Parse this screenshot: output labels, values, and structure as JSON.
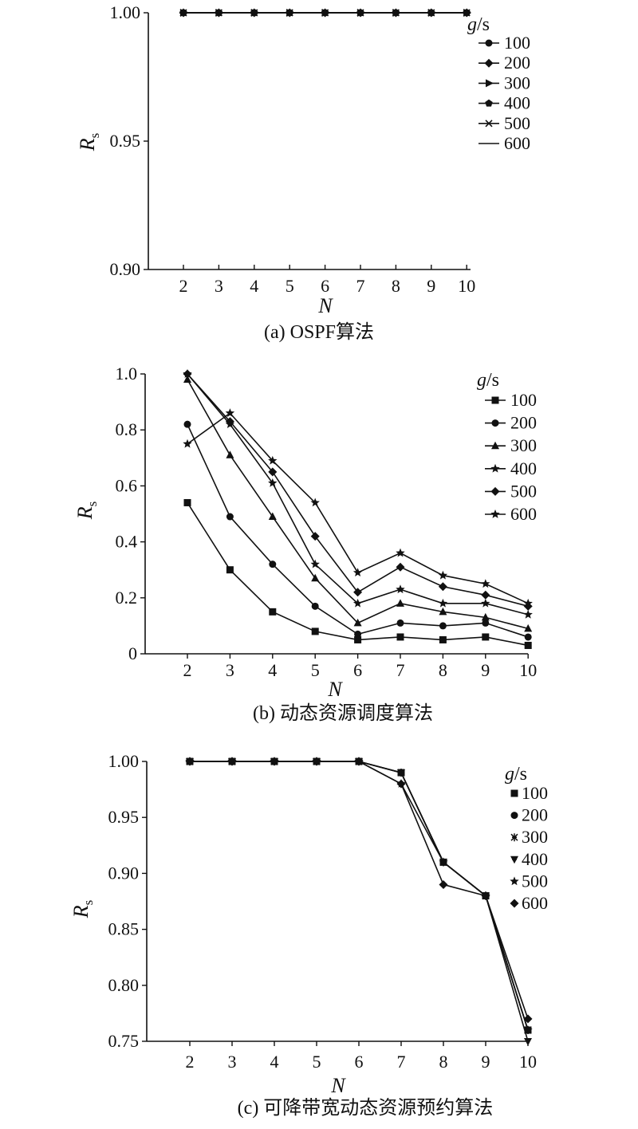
{
  "figure": {
    "panels": [
      {
        "caption": "(a) OSPF算法"
      },
      {
        "caption": "(b) 动态资源调度算法"
      },
      {
        "caption": "(c) 可降带宽动态资源预约算法"
      }
    ]
  },
  "chart_data": [
    {
      "type": "line",
      "title": "",
      "caption": "(a) OSPF算法",
      "xlabel": "N",
      "ylabel": "Rs",
      "x": [
        2,
        3,
        4,
        5,
        6,
        7,
        8,
        9,
        10
      ],
      "xticks": [
        "2",
        "3",
        "4",
        "5",
        "6",
        "7",
        "8",
        "9",
        "10"
      ],
      "ylim": [
        0.9,
        1.0
      ],
      "yticks": [
        "0.90",
        "0.95",
        "1.00"
      ],
      "legend_title": "g/s",
      "legend_position": "right",
      "grid": false,
      "series": [
        {
          "name": "100",
          "marker": "circle",
          "values": [
            1,
            1,
            1,
            1,
            1,
            1,
            1,
            1,
            1
          ]
        },
        {
          "name": "200",
          "marker": "diamond",
          "values": [
            1,
            1,
            1,
            1,
            1,
            1,
            1,
            1,
            1
          ]
        },
        {
          "name": "300",
          "marker": "triangle-right",
          "values": [
            1,
            1,
            1,
            1,
            1,
            1,
            1,
            1,
            1
          ]
        },
        {
          "name": "400",
          "marker": "pentagon",
          "values": [
            1,
            1,
            1,
            1,
            1,
            1,
            1,
            1,
            1
          ]
        },
        {
          "name": "500",
          "marker": "x",
          "values": [
            1,
            1,
            1,
            1,
            1,
            1,
            1,
            1,
            1
          ]
        },
        {
          "name": "600",
          "marker": "none",
          "values": [
            1,
            1,
            1,
            1,
            1,
            1,
            1,
            1,
            1
          ]
        }
      ]
    },
    {
      "type": "line",
      "title": "",
      "caption": "(b) 动态资源调度算法",
      "xlabel": "N",
      "ylabel": "Rs",
      "x": [
        2,
        3,
        4,
        5,
        6,
        7,
        8,
        9,
        10
      ],
      "xticks": [
        "2",
        "3",
        "4",
        "5",
        "6",
        "7",
        "8",
        "9",
        "10"
      ],
      "ylim": [
        0,
        1.0
      ],
      "yticks": [
        "0",
        "0.2",
        "0.4",
        "0.6",
        "0.8",
        "1.0"
      ],
      "legend_title": "g/s",
      "legend_position": "right",
      "grid": false,
      "series": [
        {
          "name": "100",
          "marker": "square",
          "values": [
            0.54,
            0.3,
            0.15,
            0.08,
            0.05,
            0.06,
            0.05,
            0.06,
            0.03
          ]
        },
        {
          "name": "200",
          "marker": "circle",
          "values": [
            0.82,
            0.49,
            0.32,
            0.17,
            0.07,
            0.11,
            0.1,
            0.11,
            0.06
          ]
        },
        {
          "name": "300",
          "marker": "triangle",
          "values": [
            0.98,
            0.71,
            0.49,
            0.27,
            0.11,
            0.18,
            0.15,
            0.13,
            0.09
          ]
        },
        {
          "name": "400",
          "marker": "star",
          "values": [
            1.0,
            0.82,
            0.61,
            0.32,
            0.18,
            0.23,
            0.18,
            0.18,
            0.14
          ]
        },
        {
          "name": "500",
          "marker": "diamond",
          "values": [
            1.0,
            0.83,
            0.65,
            0.42,
            0.22,
            0.31,
            0.24,
            0.21,
            0.17
          ]
        },
        {
          "name": "600",
          "marker": "star",
          "values": [
            0.75,
            0.86,
            0.69,
            0.54,
            0.29,
            0.36,
            0.28,
            0.25,
            0.18
          ]
        }
      ]
    },
    {
      "type": "line",
      "title": "",
      "caption": "(c) 可降带宽动态资源预约算法",
      "xlabel": "N",
      "ylabel": "Rs",
      "x": [
        2,
        3,
        4,
        5,
        6,
        7,
        8,
        9,
        10
      ],
      "xticks": [
        "2",
        "3",
        "4",
        "5",
        "6",
        "7",
        "8",
        "9",
        "10"
      ],
      "ylim": [
        0.75,
        1.0
      ],
      "yticks": [
        "0.75",
        "0.80",
        "0.85",
        "0.90",
        "0.95",
        "1.00"
      ],
      "legend_title": "g/s",
      "legend_position": "right",
      "grid": false,
      "series": [
        {
          "name": "100",
          "marker": "square",
          "values": [
            1.0,
            1.0,
            1.0,
            1.0,
            1.0,
            0.99,
            0.91,
            0.88,
            0.76
          ]
        },
        {
          "name": "200",
          "marker": "circle",
          "values": [
            1.0,
            1.0,
            1.0,
            1.0,
            1.0,
            0.99,
            0.91,
            0.88,
            0.76
          ]
        },
        {
          "name": "300",
          "marker": "asterisk",
          "values": [
            1.0,
            1.0,
            1.0,
            1.0,
            1.0,
            0.99,
            0.91,
            0.88,
            0.76
          ]
        },
        {
          "name": "400",
          "marker": "triangle-down",
          "values": [
            1.0,
            1.0,
            1.0,
            1.0,
            1.0,
            0.99,
            0.91,
            0.88,
            0.75
          ]
        },
        {
          "name": "500",
          "marker": "star",
          "values": [
            1.0,
            1.0,
            1.0,
            1.0,
            1.0,
            0.98,
            0.91,
            0.88,
            0.76
          ]
        },
        {
          "name": "600",
          "marker": "diamond",
          "values": [
            1.0,
            1.0,
            1.0,
            1.0,
            1.0,
            0.98,
            0.89,
            0.88,
            0.77
          ]
        }
      ]
    }
  ]
}
